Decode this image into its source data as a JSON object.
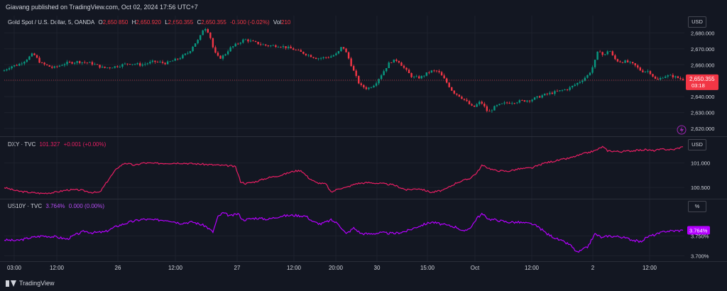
{
  "publish_line": "Giavang published on TradingView.com, Oct 02, 2024 17:56 UTC+7",
  "footer": {
    "brand": "TradingView"
  },
  "colors": {
    "background": "#131722",
    "grid": "#1e222d",
    "up_candle": "#089981",
    "down_candle": "#f23645",
    "dxy_line": "#e91e63",
    "us10y_line": "#b400ff",
    "price_label_bg": "#f23645",
    "pane_divider": "#2a2e39"
  },
  "legends": {
    "gold": {
      "symbol": "Gold Spot / U.S. Dollar, 5, OANDA",
      "o_label": "O",
      "o_value": "2,650.850",
      "h_label": "H",
      "h_value": "2,650.920",
      "l_label": "L",
      "l_value": "2,650.355",
      "c_label": "C",
      "c_value": "2,650.355",
      "change": "-0.500 (-0.02%)",
      "vol_label": "Vol",
      "vol_value": "210"
    },
    "dxy": {
      "symbol": "DXY · TVC",
      "value": "101.327",
      "change": "+0.001 (+0.00%)"
    },
    "us10y": {
      "symbol": "US10Y · TVC",
      "value": "3.764%",
      "change": "0.000 (0.00%)"
    }
  },
  "axis_units": {
    "gold": "USD",
    "dxy": "USD",
    "us10y": "%"
  },
  "lightning_icon": "lightning-icon",
  "chart_data": [
    {
      "type": "candlestick",
      "title": "Gold Spot / U.S. Dollar, 5, OANDA",
      "unit": "USD",
      "ylim": [
        2616,
        2690
      ],
      "y_ticks": [
        "2,680.000",
        "2,670.000",
        "2,660.000",
        "2,650.000",
        "2,640.000",
        "2,630.000",
        "2,620.000"
      ],
      "y_tick_values": [
        2680,
        2670,
        2660,
        2650,
        2640,
        2630,
        2620
      ],
      "x_ticks": [
        "03:00",
        "12:00",
        "26",
        "12:00",
        "27",
        "12:00",
        "20:00",
        "30",
        "15:00",
        "Oct",
        "12:00",
        "2",
        "12:00"
      ],
      "close_path": [
        [
          0,
          2656
        ],
        [
          3,
          2659
        ],
        [
          6,
          2660
        ],
        [
          9,
          2663
        ],
        [
          12,
          2667
        ],
        [
          15,
          2661
        ],
        [
          20,
          2658
        ],
        [
          25,
          2661
        ],
        [
          30,
          2662
        ],
        [
          35,
          2661
        ],
        [
          40,
          2658
        ],
        [
          45,
          2659
        ],
        [
          50,
          2661
        ],
        [
          55,
          2660
        ],
        [
          60,
          2662
        ],
        [
          65,
          2661
        ],
        [
          70,
          2664
        ],
        [
          74,
          2668
        ],
        [
          76,
          2673
        ],
        [
          78,
          2676
        ],
        [
          80,
          2684
        ],
        [
          82,
          2680
        ],
        [
          84,
          2668
        ],
        [
          86,
          2664
        ],
        [
          88,
          2666
        ],
        [
          90,
          2670
        ],
        [
          93,
          2673
        ],
        [
          96,
          2676
        ],
        [
          100,
          2674
        ],
        [
          105,
          2672
        ],
        [
          110,
          2672
        ],
        [
          115,
          2670
        ],
        [
          120,
          2667
        ],
        [
          125,
          2664
        ],
        [
          130,
          2665
        ],
        [
          133,
          2667
        ],
        [
          135,
          2672
        ],
        [
          137,
          2666
        ],
        [
          140,
          2654
        ],
        [
          142,
          2647
        ],
        [
          145,
          2645
        ],
        [
          148,
          2648
        ],
        [
          151,
          2655
        ],
        [
          154,
          2662
        ],
        [
          157,
          2663
        ],
        [
          160,
          2657
        ],
        [
          163,
          2652
        ],
        [
          166,
          2652
        ],
        [
          170,
          2656
        ],
        [
          173,
          2656
        ],
        [
          176,
          2650
        ],
        [
          179,
          2643
        ],
        [
          182,
          2640
        ],
        [
          185,
          2636
        ],
        [
          187,
          2633
        ],
        [
          190,
          2637
        ],
        [
          193,
          2630
        ],
        [
          196,
          2634
        ],
        [
          200,
          2636
        ],
        [
          205,
          2637
        ],
        [
          210,
          2638
        ],
        [
          215,
          2641
        ],
        [
          220,
          2643
        ],
        [
          225,
          2645
        ],
        [
          230,
          2650
        ],
        [
          233,
          2654
        ],
        [
          235,
          2660
        ],
        [
          237,
          2670
        ],
        [
          239,
          2665
        ],
        [
          241,
          2670
        ],
        [
          243,
          2664
        ],
        [
          245,
          2662
        ],
        [
          248,
          2662
        ],
        [
          251,
          2660
        ],
        [
          254,
          2656
        ],
        [
          257,
          2656
        ],
        [
          260,
          2650
        ],
        [
          263,
          2653
        ],
        [
          266,
          2653
        ],
        [
          270,
          2651
        ]
      ]
    },
    {
      "type": "line",
      "name": "DXY",
      "unit": "USD",
      "ylim": [
        100.3,
        101.5
      ],
      "y_ticks": [
        "101.000",
        "100.500"
      ],
      "y_tick_values": [
        101.0,
        100.5
      ],
      "last_value": "101.327",
      "points": [
        [
          0,
          100.5
        ],
        [
          5,
          100.43
        ],
        [
          10,
          100.4
        ],
        [
          15,
          100.38
        ],
        [
          20,
          100.4
        ],
        [
          25,
          100.45
        ],
        [
          30,
          100.45
        ],
        [
          35,
          100.4
        ],
        [
          38,
          100.4
        ],
        [
          42,
          100.7
        ],
        [
          45,
          100.9
        ],
        [
          48,
          101.0
        ],
        [
          52,
          100.95
        ],
        [
          55,
          101.0
        ],
        [
          60,
          100.99
        ],
        [
          70,
          101.0
        ],
        [
          80,
          100.97
        ],
        [
          90,
          100.94
        ],
        [
          92,
          100.92
        ],
        [
          94,
          100.62
        ],
        [
          96,
          100.58
        ],
        [
          100,
          100.62
        ],
        [
          105,
          100.7
        ],
        [
          110,
          100.75
        ],
        [
          115,
          100.83
        ],
        [
          118,
          100.85
        ],
        [
          121,
          100.7
        ],
        [
          124,
          100.6
        ],
        [
          128,
          100.57
        ],
        [
          130,
          100.4
        ],
        [
          133,
          100.48
        ],
        [
          136,
          100.5
        ],
        [
          140,
          100.58
        ],
        [
          145,
          100.6
        ],
        [
          150,
          100.58
        ],
        [
          155,
          100.55
        ],
        [
          160,
          100.45
        ],
        [
          165,
          100.48
        ],
        [
          170,
          100.4
        ],
        [
          175,
          100.45
        ],
        [
          180,
          100.6
        ],
        [
          185,
          100.68
        ],
        [
          188,
          100.8
        ],
        [
          190,
          100.95
        ],
        [
          195,
          100.85
        ],
        [
          200,
          100.83
        ],
        [
          205,
          100.88
        ],
        [
          210,
          100.9
        ],
        [
          215,
          101.0
        ],
        [
          220,
          101.05
        ],
        [
          225,
          101.1
        ],
        [
          230,
          101.18
        ],
        [
          235,
          101.25
        ],
        [
          238,
          101.33
        ],
        [
          240,
          101.25
        ],
        [
          245,
          101.23
        ],
        [
          250,
          101.25
        ],
        [
          255,
          101.27
        ],
        [
          258,
          101.25
        ],
        [
          262,
          101.28
        ],
        [
          266,
          101.27
        ],
        [
          270,
          101.33
        ]
      ]
    },
    {
      "type": "line",
      "name": "US10Y",
      "unit": "%",
      "ylim": [
        3.69,
        3.84
      ],
      "y_ticks": [
        "3.750%",
        "3.700%"
      ],
      "y_tick_values": [
        3.75,
        3.7
      ],
      "last_value": "3.764%",
      "points": [
        [
          0,
          3.74
        ],
        [
          5,
          3.738
        ],
        [
          10,
          3.745
        ],
        [
          15,
          3.75
        ],
        [
          20,
          3.748
        ],
        [
          25,
          3.742
        ],
        [
          28,
          3.752
        ],
        [
          32,
          3.762
        ],
        [
          35,
          3.758
        ],
        [
          40,
          3.76
        ],
        [
          45,
          3.775
        ],
        [
          50,
          3.785
        ],
        [
          55,
          3.792
        ],
        [
          60,
          3.79
        ],
        [
          65,
          3.79
        ],
        [
          70,
          3.782
        ],
        [
          75,
          3.785
        ],
        [
          80,
          3.775
        ],
        [
          83,
          3.76
        ],
        [
          85,
          3.798
        ],
        [
          87,
          3.808
        ],
        [
          90,
          3.8
        ],
        [
          93,
          3.806
        ],
        [
          95,
          3.79
        ],
        [
          100,
          3.795
        ],
        [
          105,
          3.792
        ],
        [
          110,
          3.8
        ],
        [
          115,
          3.802
        ],
        [
          120,
          3.8
        ],
        [
          123,
          3.785
        ],
        [
          126,
          3.78
        ],
        [
          130,
          3.79
        ],
        [
          133,
          3.78
        ],
        [
          136,
          3.755
        ],
        [
          139,
          3.77
        ],
        [
          142,
          3.756
        ],
        [
          145,
          3.755
        ],
        [
          150,
          3.758
        ],
        [
          155,
          3.756
        ],
        [
          160,
          3.762
        ],
        [
          165,
          3.775
        ],
        [
          170,
          3.785
        ],
        [
          175,
          3.778
        ],
        [
          180,
          3.772
        ],
        [
          183,
          3.76
        ],
        [
          186,
          3.775
        ],
        [
          188,
          3.795
        ],
        [
          190,
          3.805
        ],
        [
          193,
          3.792
        ],
        [
          196,
          3.79
        ],
        [
          200,
          3.785
        ],
        [
          205,
          3.784
        ],
        [
          210,
          3.78
        ],
        [
          213,
          3.77
        ],
        [
          216,
          3.755
        ],
        [
          220,
          3.742
        ],
        [
          225,
          3.728
        ],
        [
          228,
          3.708
        ],
        [
          232,
          3.722
        ],
        [
          235,
          3.755
        ],
        [
          238,
          3.745
        ],
        [
          240,
          3.75
        ],
        [
          245,
          3.748
        ],
        [
          250,
          3.74
        ],
        [
          253,
          3.735
        ],
        [
          256,
          3.748
        ],
        [
          260,
          3.755
        ],
        [
          263,
          3.762
        ],
        [
          267,
          3.763
        ],
        [
          270,
          3.764
        ]
      ]
    }
  ]
}
